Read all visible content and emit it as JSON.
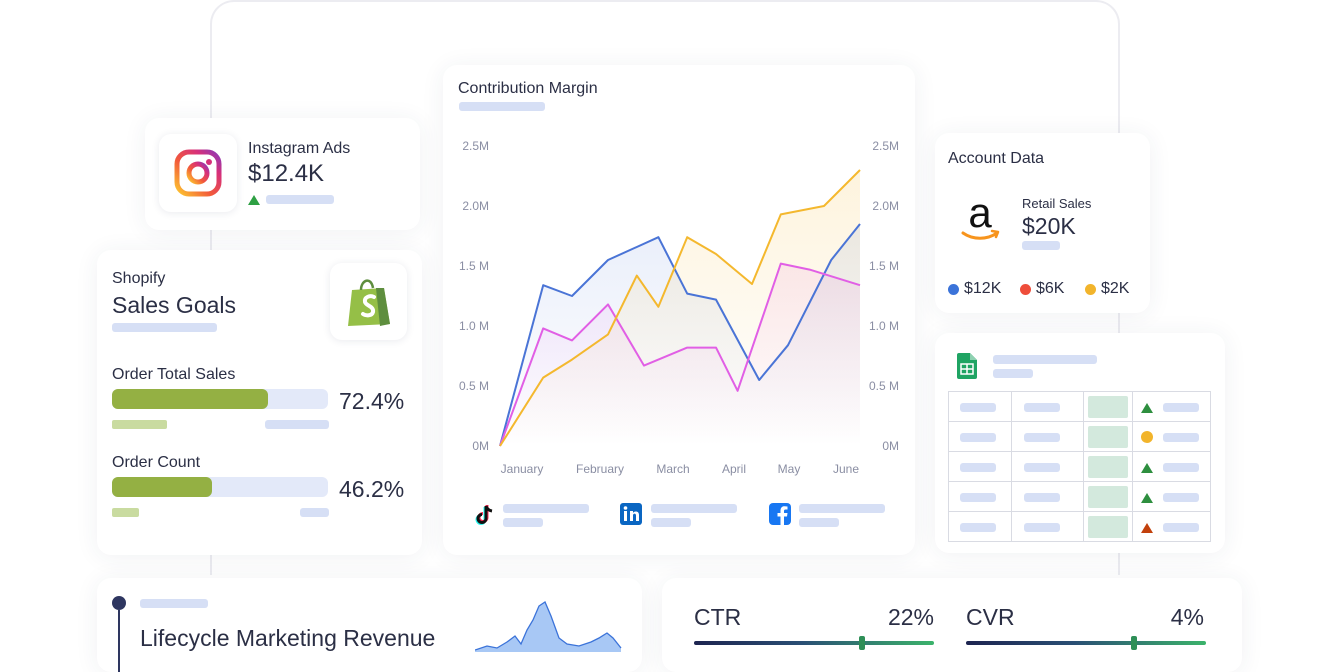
{
  "instagram": {
    "title": "Instagram Ads",
    "value": "$12.4K",
    "icon": "instagram-icon"
  },
  "shopify": {
    "subtitle": "Shopify",
    "title": "Sales Goals",
    "icon": "shopify-bag-icon",
    "metrics": [
      {
        "label": "Order Total Sales",
        "percent_text": "72.4%",
        "fill_fraction": 0.724
      },
      {
        "label": "Order Count",
        "percent_text": "46.2%",
        "fill_fraction": 0.462
      }
    ],
    "bar_color": "#94b043"
  },
  "chart": {
    "title": "Contribution Margin",
    "social_icons": [
      "tiktok-icon",
      "linkedin-icon",
      "facebook-icon"
    ]
  },
  "chart_data": {
    "type": "line",
    "title": "Contribution Margin",
    "categories": [
      "January",
      "February",
      "March",
      "April",
      "May",
      "June"
    ],
    "x_ticks": [
      "January",
      "February",
      "March",
      "April",
      "May",
      "June"
    ],
    "y_ticks": [
      "0M",
      "0.5 M",
      "1.0 M",
      "1.5 M",
      "2.0M",
      "2.5M"
    ],
    "y_ticks_right": [
      "0M",
      "0.5 M",
      "1.0 M",
      "1.5 M",
      "2.0M",
      "2.5M"
    ],
    "ylim": [
      0,
      2.5
    ],
    "grid": false,
    "series": [
      {
        "color": "#4a74d6",
        "x": [
          0,
          0.6,
          1.0,
          1.5,
          2.2,
          2.6,
          3.0,
          3.6,
          4.0,
          4.6,
          5.0
        ],
        "values": [
          0,
          1.34,
          1.25,
          1.55,
          1.74,
          1.27,
          1.22,
          0.55,
          0.84,
          1.55,
          1.85
        ]
      },
      {
        "color": "#e15fe5",
        "x": [
          0,
          0.6,
          1.0,
          1.5,
          2.0,
          2.6,
          3.0,
          3.3,
          3.9,
          4.3,
          5.0
        ],
        "values": [
          0,
          0.98,
          0.88,
          1.18,
          0.67,
          0.82,
          0.82,
          0.46,
          1.52,
          1.47,
          1.34
        ]
      },
      {
        "color": "#f4b82e",
        "x": [
          0,
          0.6,
          1.0,
          1.5,
          1.9,
          2.2,
          2.6,
          3.0,
          3.5,
          3.9,
          4.5,
          5.0
        ],
        "values": [
          0,
          0.57,
          0.72,
          0.93,
          1.42,
          1.16,
          1.74,
          1.6,
          1.35,
          1.93,
          2.0,
          2.3
        ]
      }
    ]
  },
  "account": {
    "title": "Account Data",
    "icon": "amazon-icon",
    "retail_label": "Retail Sales",
    "retail_value": "$20K",
    "legend": [
      {
        "label": "$12K",
        "color": "#3b73d9"
      },
      {
        "label": "$6K",
        "color": "#ee4d3a"
      },
      {
        "label": "$2K",
        "color": "#f2b42b"
      }
    ]
  },
  "sheet": {
    "icon": "google-sheets-icon",
    "row_status": [
      "up-green",
      "neutral-yellow",
      "up-green",
      "up-green",
      "up-orange"
    ]
  },
  "lifecycle": {
    "title": "Lifecycle Marketing Revenue"
  },
  "kpis": [
    {
      "label": "CTR",
      "value": "22%",
      "level_fraction": 0.7
    },
    {
      "label": "CVR",
      "value": "4%",
      "level_fraction": 0.7
    }
  ]
}
